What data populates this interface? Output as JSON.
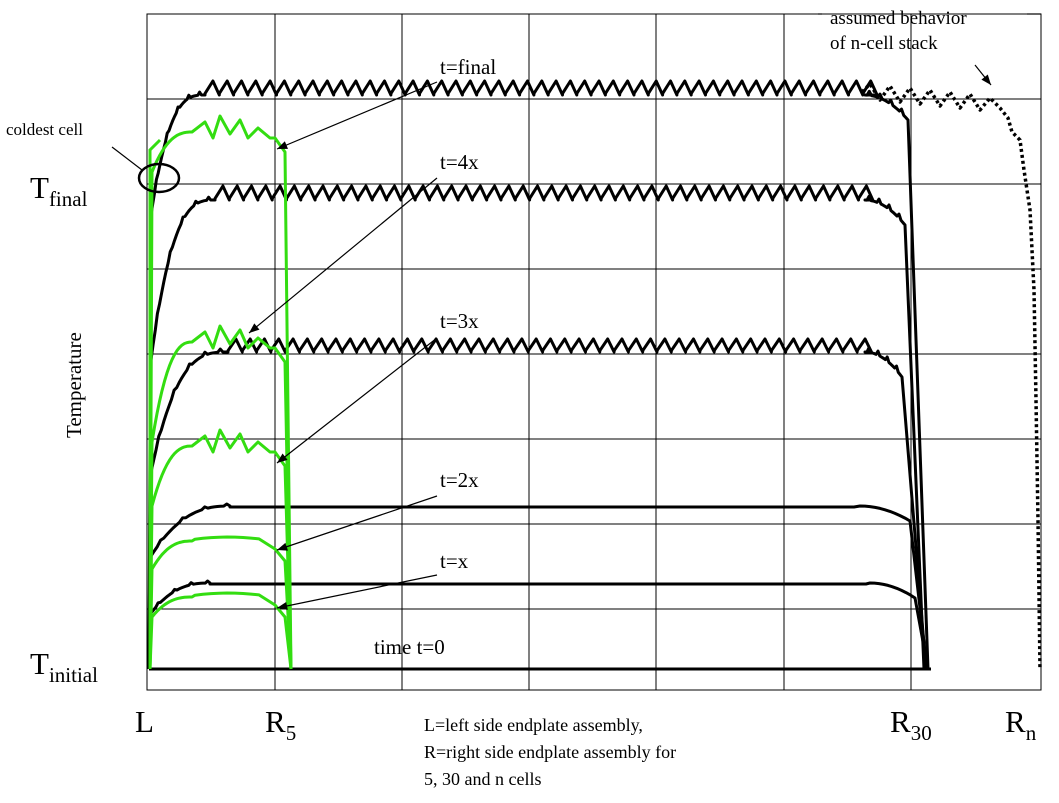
{
  "diagram": {
    "y_axis_label": "Temperature",
    "y_levels": {
      "final": {
        "main": "T",
        "sub": "final"
      },
      "initial": {
        "main": "T",
        "sub": "initial"
      }
    },
    "x_positions": [
      {
        "main": "L",
        "sub": ""
      },
      {
        "main": "R",
        "sub": "5"
      },
      {
        "main": "R",
        "sub": "30"
      },
      {
        "main": "R",
        "sub": "n"
      }
    ],
    "curve_labels": {
      "t0": "time t=0",
      "tx": "t=x",
      "t2x": "t=2x",
      "t3x": "t=3x",
      "t4x": "t=4x",
      "tfinal": "t=final"
    },
    "annotations": {
      "coldest_cell": "coldest cell",
      "assumed_behavior": "assumed behavior\nof n-cell stack",
      "legend_note": "L=left side endplate assembly,\nR=right side endplate assembly for\n5, 30 and n cells"
    },
    "colors": {
      "stack_30_and_n": "#000000",
      "stack_5": "#33dd11",
      "grid": "#000000"
    },
    "line_styles": {
      "n_cell_stack": "dotted"
    }
  }
}
